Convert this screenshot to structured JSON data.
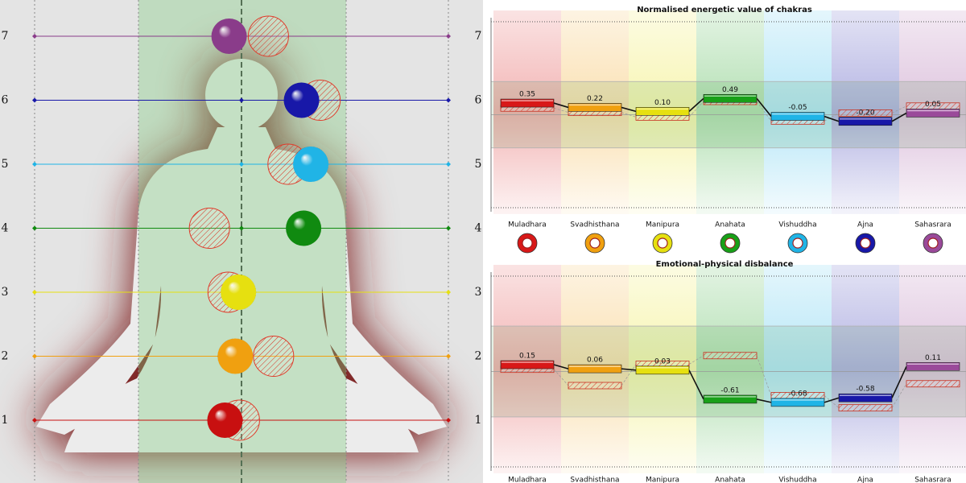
{
  "figure": {
    "levels": [
      1,
      2,
      3,
      4,
      5,
      6,
      7
    ],
    "colors": [
      "#c81010",
      "#f0a010",
      "#e6e010",
      "#108a10",
      "#20b4e6",
      "#1818a8",
      "#8a3c8a"
    ],
    "values": [
      -0.16,
      -0.06,
      -0.03,
      0.6,
      0.67,
      0.58,
      -0.12
    ],
    "reference": [
      -0.02,
      0.31,
      -0.13,
      -0.31,
      0.45,
      0.76,
      0.26
    ],
    "xlim": [
      -2,
      2
    ]
  },
  "chart_data": [
    {
      "type": "bar",
      "title": "Normalised energetic value of chakras",
      "categories": [
        "Muladhara",
        "Svadhisthana",
        "Manipura",
        "Anahata",
        "Vishuddha",
        "Ajna",
        "Sahasrara"
      ],
      "values": [
        0.35,
        0.22,
        0.1,
        0.49,
        -0.05,
        -0.2,
        0.05
      ],
      "value_labels": [
        "0.35",
        "0.22",
        "0.10",
        "0.49",
        "-0.05",
        "-0.20",
        "0.05"
      ],
      "reference": [
        0.2,
        0.07,
        -0.07,
        0.4,
        -0.19,
        0.05,
        0.26
      ],
      "colors": [
        "#d81818",
        "#f0a010",
        "#e6e010",
        "#18a018",
        "#20b4e6",
        "#1818a8",
        "#9a4a9a"
      ],
      "ylim": [
        -2.8,
        2.8
      ],
      "band": [
        -1,
        1
      ]
    },
    {
      "type": "bar",
      "title": "Emotional-physical disbalance",
      "categories": [
        "Muladhara",
        "Svadhisthana",
        "Manipura",
        "Anahata",
        "Vishuddha",
        "Ajna",
        "Sahasrara"
      ],
      "values": [
        0.15,
        0.06,
        0.03,
        -0.61,
        -0.68,
        -0.58,
        0.11
      ],
      "value_labels": [
        "0.15",
        "0.06",
        "0.03",
        "-0.61",
        "-0.68",
        "-0.58",
        "0.11"
      ],
      "reference": [
        0.05,
        -0.31,
        0.16,
        0.35,
        -0.53,
        -0.8,
        -0.27
      ],
      "colors": [
        "#d81818",
        "#f0a010",
        "#e6e010",
        "#18a018",
        "#20b4e6",
        "#1818a8",
        "#9a4a9a"
      ],
      "ylim": [
        -2.1,
        2.1
      ],
      "band": [
        -1,
        1
      ]
    }
  ]
}
